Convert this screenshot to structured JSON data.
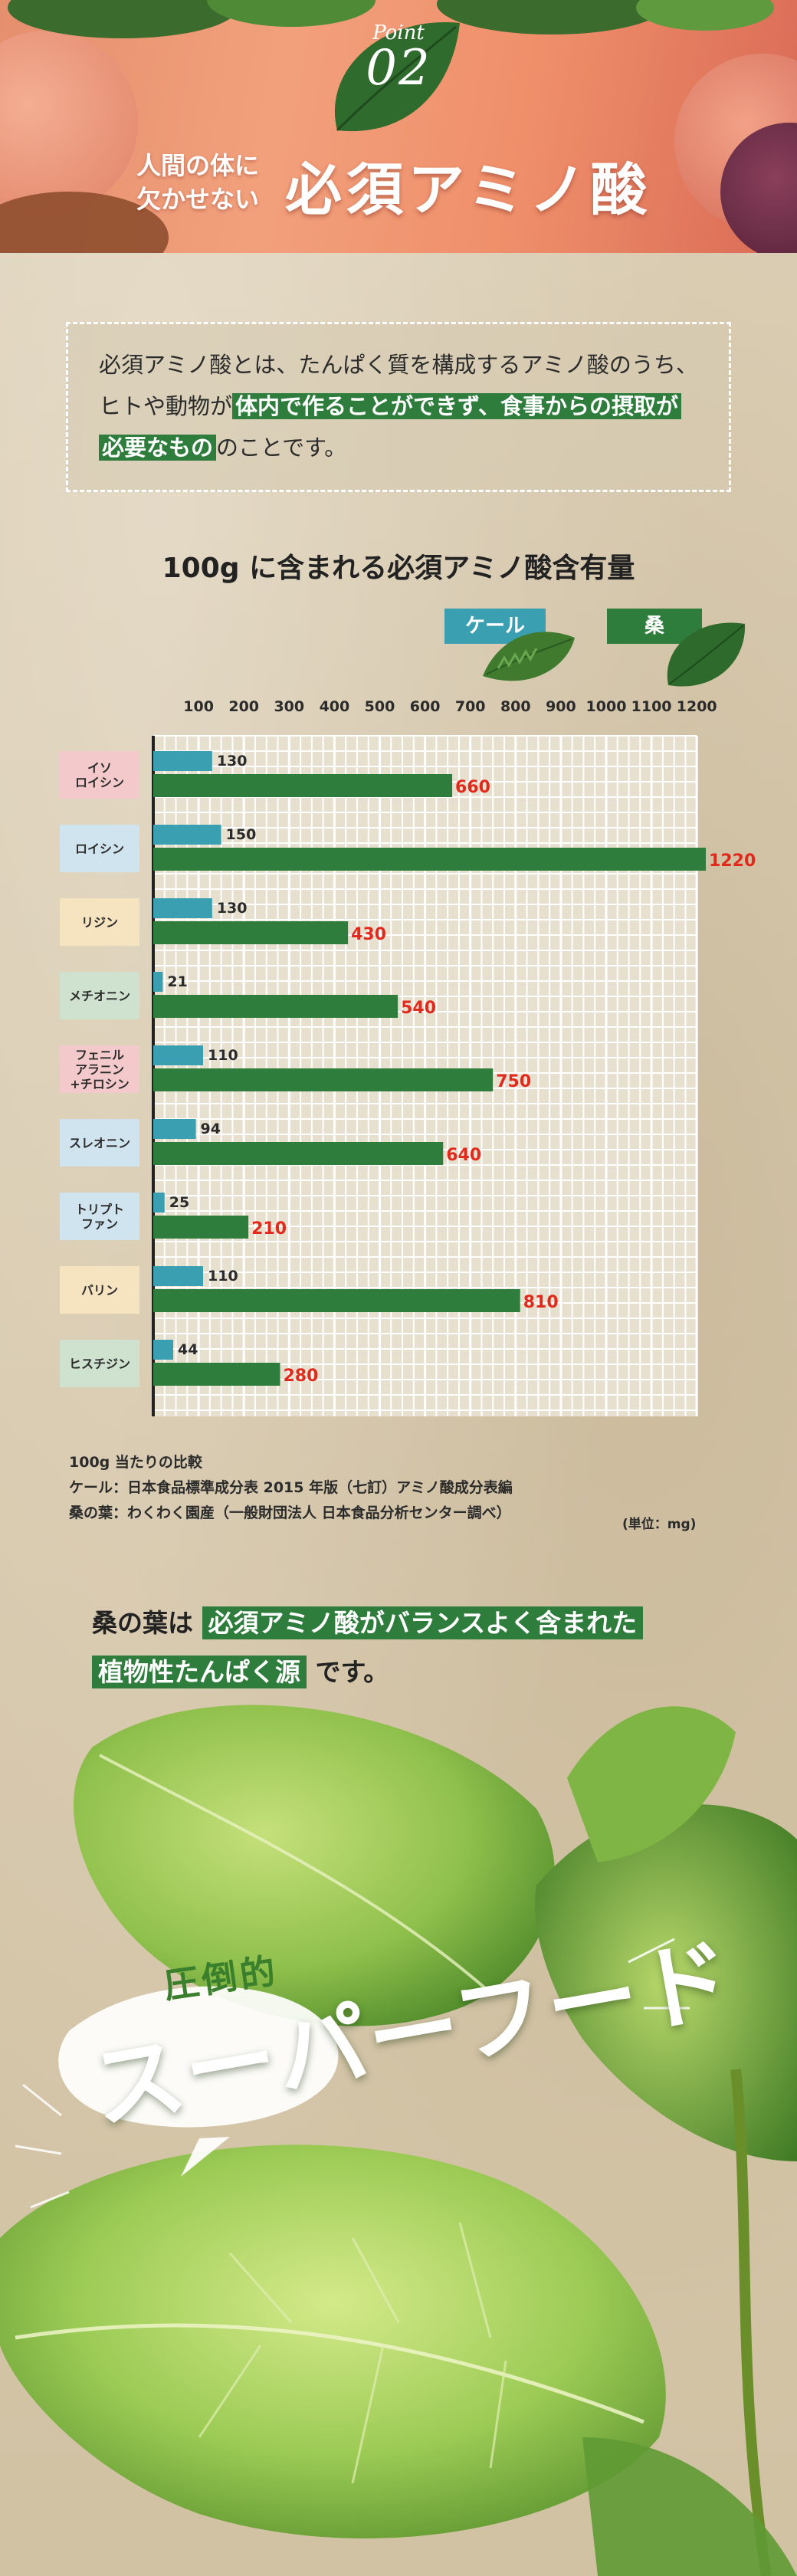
{
  "header": {
    "point_word": "Point",
    "point_number": "02",
    "subtitle_line1": "人間の体に",
    "subtitle_line2": "欠かせない",
    "title": "必須アミノ酸"
  },
  "intro": {
    "text_before": "必須アミノ酸とは、たんぱく質を構成するアミノ酸のうち、ヒトや動物が",
    "highlight1": "体内で作ることができず、食事からの摂取が",
    "highlight2": "必要なもの",
    "text_after": "のことです。"
  },
  "chart_data": {
    "type": "bar",
    "title": "100g に含まれる必須アミノ酸含有量",
    "orientation": "horizontal",
    "xlim": [
      0,
      1200
    ],
    "x_ticks": [
      100,
      200,
      300,
      400,
      500,
      600,
      700,
      800,
      900,
      1000,
      1100,
      1200
    ],
    "grid": true,
    "legend_position": "top-right",
    "categories": [
      "イソ\nロイシン",
      "ロイシン",
      "リジン",
      "メチオニン",
      "フェニル\nアラニン\n+チロシン",
      "スレオニン",
      "トリプト\nファン",
      "バリン",
      "ヒスチジン"
    ],
    "category_colors": [
      "#f3c9cb",
      "#cfe4ee",
      "#f6e3c0",
      "#cfe1cf",
      "#f3c9cb",
      "#cfe4ee",
      "#cfe4ee",
      "#f6e3c0",
      "#cfe1cf"
    ],
    "series": [
      {
        "name": "ケール",
        "color": "#3aa0b1",
        "values": [
          130,
          150,
          130,
          21,
          110,
          94,
          25,
          110,
          44
        ]
      },
      {
        "name": "桑",
        "color": "#2f7d3c",
        "values": [
          660,
          1220,
          430,
          540,
          750,
          640,
          210,
          810,
          280
        ]
      }
    ],
    "value_label_color_mulberry": "#e02a1c",
    "unit": "(単位：mg)"
  },
  "notes": {
    "line1": "100g 当たりの比較",
    "line2": "ケール：日本食品標準成分表 2015 年版（七訂）アミノ酸成分表編",
    "line3": "桑の葉：わくわく園産（一般財団法人 日本食品分析センター調べ）"
  },
  "conclusion": {
    "prefix": "桑の葉は",
    "highlight1": "必須アミノ酸がバランスよく含まれた",
    "highlight2": "植物性たんぱく源",
    "suffix": "です。"
  },
  "hero": {
    "bubble_text": "圧倒的",
    "big_text": "スーパーフード"
  }
}
